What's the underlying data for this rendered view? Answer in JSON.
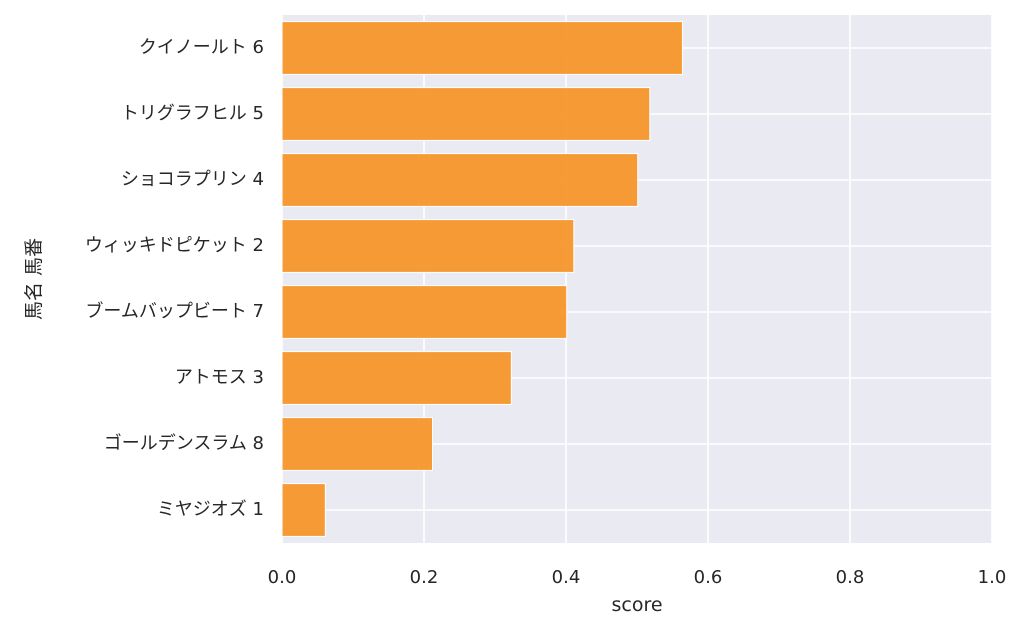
{
  "chart_data": {
    "type": "bar",
    "orientation": "horizontal",
    "categories": [
      "クイノールト 6",
      "トリグラフヒル 5",
      "ショコラプリン 4",
      "ウィッキドピケット 2",
      "ブームバップビート 7",
      "アトモス 3",
      "ゴールデンスラム 8",
      "ミヤジオズ 1"
    ],
    "values": [
      0.564,
      0.518,
      0.501,
      0.411,
      0.401,
      0.323,
      0.212,
      0.061
    ],
    "xlabel": "score",
    "ylabel": "馬名 馬番",
    "xlim": [
      0,
      1.0
    ],
    "xticks": [
      "0.0",
      "0.2",
      "0.4",
      "0.6",
      "0.8",
      "1.0"
    ],
    "grid": true,
    "colors": {
      "bar": "#f7962b",
      "bar_edge": "#ffffff",
      "plot_bg": "#eaeaf2",
      "grid": "#ffffff",
      "text": "#262626"
    }
  }
}
